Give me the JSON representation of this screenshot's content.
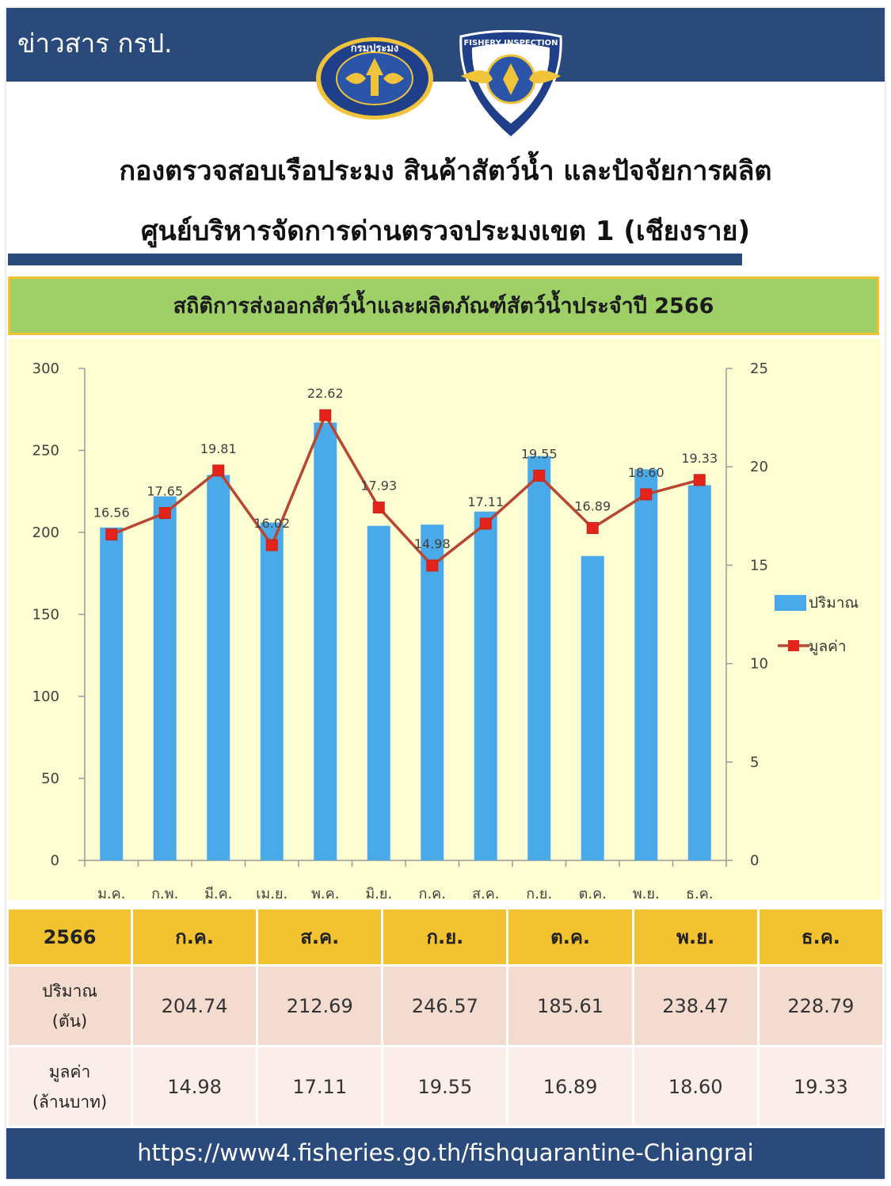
{
  "header": {
    "brand": "ข่าวสาร กรป.",
    "logo_left_text": "กรมประมง",
    "logo_right_text": "FISHERY INSPECTION",
    "title_line1": "กองตรวจสอบเรือประมง สินค้าสัตว์น้ำ และปัจจัยการผลิต",
    "title_line2": "ศูนย์บริหารจัดการด่านตรวจประมงเขต 1 (เชียงราย)"
  },
  "banner": {
    "title": "สถิติการส่งออกสัตว์น้ำและผลิตภัณฑ์สัตว์น้ำประจำปี 2566"
  },
  "colors": {
    "navy": "#2b4a7c",
    "bar": "#4aa9e9",
    "line": "#b84632",
    "marker": "#e5231b",
    "banner": "#9fd068",
    "gold": "#f3c32f",
    "chart_bg": "#fefed3"
  },
  "chart_data": {
    "type": "bar",
    "categories": [
      "ม.ค.",
      "ก.พ.",
      "มี.ค.",
      "เม.ย.",
      "พ.ค.",
      "มิ.ย.",
      "ก.ค.",
      "ส.ค.",
      "ก.ย.",
      "ต.ค.",
      "พ.ย.",
      "ธ.ค."
    ],
    "series": [
      {
        "name": "ปริมาณ",
        "type": "bar",
        "axis": "left",
        "values": [
          203,
          222,
          235,
          206,
          267,
          204,
          204.74,
          212.69,
          246.57,
          185.61,
          238.47,
          228.79
        ]
      },
      {
        "name": "มูลค่า",
        "type": "line",
        "axis": "right",
        "values": [
          16.56,
          17.65,
          19.81,
          16.02,
          22.62,
          17.93,
          14.98,
          17.11,
          19.55,
          16.89,
          18.6,
          19.33
        ],
        "labels": [
          "16.56",
          "17.65",
          "19.81",
          "16.02",
          "22.62",
          "17.93",
          "14.98",
          "17.11",
          "19.55",
          "16.89",
          "18.60",
          "19.33"
        ]
      }
    ],
    "ylim_left": [
      0,
      300
    ],
    "yticks_left": [
      "0",
      "50",
      "100",
      "150",
      "200",
      "250",
      "300"
    ],
    "ylim_right": [
      0,
      25
    ],
    "yticks_right": [
      "0",
      "5",
      "10",
      "15",
      "20",
      "25"
    ],
    "legend": "right",
    "grid": false
  },
  "table": {
    "corner": "2566",
    "months": [
      "ก.ค.",
      "ส.ค.",
      "ก.ย.",
      "ต.ค.",
      "พ.ย.",
      "ธ.ค."
    ],
    "row1_label_a": "ปริมาณ",
    "row1_label_b": "(ตัน)",
    "row1": [
      "204.74",
      "212.69",
      "246.57",
      "185.61",
      "238.47",
      "228.79"
    ],
    "row2_label_a": "มูลค่า",
    "row2_label_b": "(ล้านบาท)",
    "row2": [
      "14.98",
      "17.11",
      "19.55",
      "16.89",
      "18.60",
      "19.33"
    ]
  },
  "footer": {
    "url": "https://www4.fisheries.go.th/fishquarantine-Chiangrai"
  }
}
